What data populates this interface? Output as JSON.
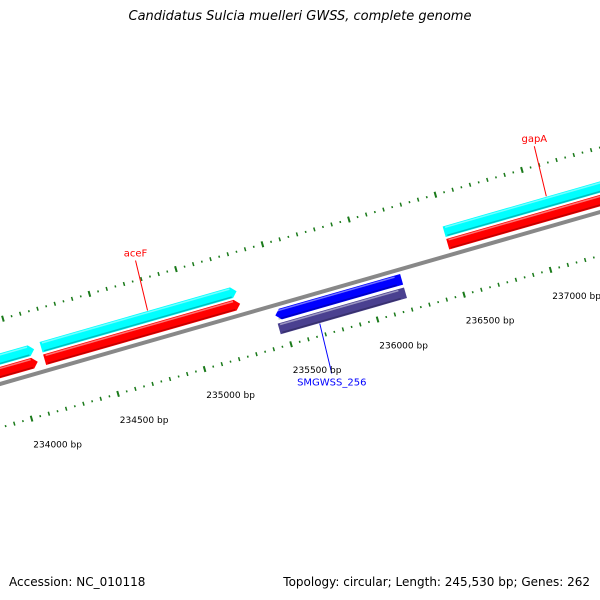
{
  "header": {
    "title": "Candidatus Sulcia muelleri GWSS, complete genome"
  },
  "footer": {
    "accession": "Accession: NC_010118",
    "stats": "Topology: circular; Length: 245,530 bp; Genes: 262"
  },
  "colors": {
    "forward_cds": "#00ffff",
    "forward_gene": "#ff0000",
    "reverse_cds": "#0000ff",
    "reverse_gene": "#4a4090",
    "backbone": "#888888",
    "ticks": "#1a7a1a",
    "forward_label": "#ff0000",
    "reverse_label": "#0000ff"
  },
  "scale": {
    "tick_labels": [
      {
        "text": "234000 bp",
        "bp": 234000
      },
      {
        "text": "234500 bp",
        "bp": 234500
      },
      {
        "text": "235000 bp",
        "bp": 235000
      },
      {
        "text": "235500 bp",
        "bp": 235500
      },
      {
        "text": "236000 bp",
        "bp": 236000
      },
      {
        "text": "236500 bp",
        "bp": 236500
      },
      {
        "text": "237000 bp",
        "bp": 237000
      }
    ]
  },
  "features": [
    {
      "strand": "forward",
      "label": "",
      "start_bp": 233550,
      "end_bp": 234120
    },
    {
      "strand": "forward",
      "label": "aceF",
      "start_bp": 234160,
      "end_bp": 235290
    },
    {
      "strand": "reverse",
      "label": "SMGWSS_256",
      "start_bp": 235460,
      "end_bp": 236190
    },
    {
      "strand": "forward",
      "label": "gapA",
      "start_bp": 236490,
      "end_bp": 237570
    }
  ]
}
